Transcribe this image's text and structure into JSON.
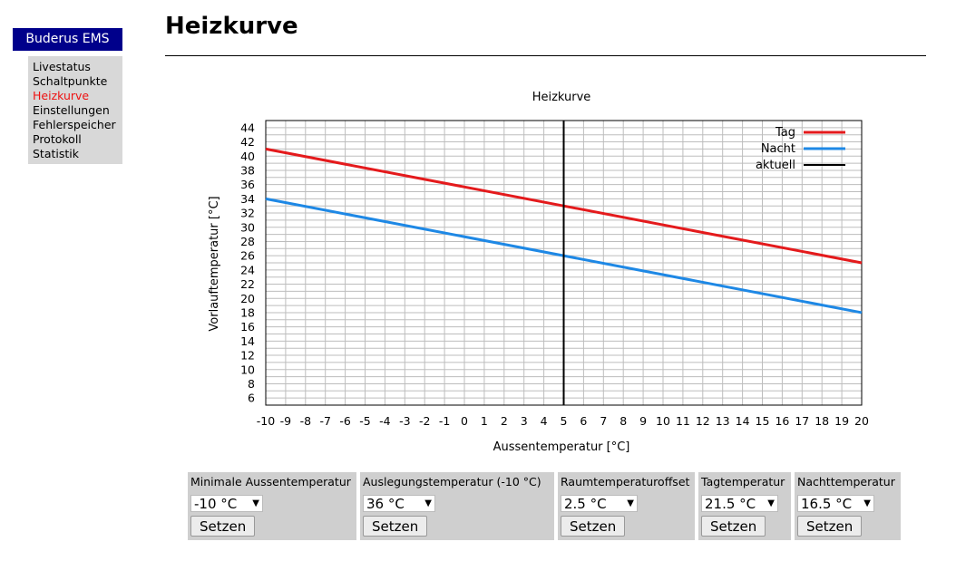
{
  "sidebar": {
    "brand": "Buderus EMS",
    "items": [
      {
        "label": "Livestatus",
        "active": false
      },
      {
        "label": "Schaltpunkte",
        "active": false
      },
      {
        "label": "Heizkurve",
        "active": true
      },
      {
        "label": "Einstellungen",
        "active": false
      },
      {
        "label": "Fehlerspeicher",
        "active": false
      },
      {
        "label": "Protokoll",
        "active": false
      },
      {
        "label": "Statistik",
        "active": false
      }
    ]
  },
  "header": {
    "title": "Heizkurve"
  },
  "colors": {
    "tag": "#e41a1c",
    "nacht": "#1e88e5",
    "aktuell": "#000000",
    "brand": "#00008b",
    "active_nav": "#ee1111"
  },
  "chart_data": {
    "type": "line",
    "title": "Heizkurve",
    "xlabel": "Aussentemperatur [°C]",
    "ylabel": "Vorlauftemperatur [°C]",
    "xlim": [
      -10,
      20
    ],
    "ylim": [
      5,
      45
    ],
    "xticks": [
      -10,
      -9,
      -8,
      -7,
      -6,
      -5,
      -4,
      -3,
      -2,
      -1,
      0,
      1,
      2,
      3,
      4,
      5,
      6,
      7,
      8,
      9,
      10,
      11,
      12,
      13,
      14,
      15,
      16,
      17,
      18,
      19,
      20
    ],
    "yticks": [
      6,
      8,
      10,
      12,
      14,
      16,
      18,
      20,
      22,
      24,
      26,
      28,
      30,
      32,
      34,
      36,
      38,
      40,
      42,
      44
    ],
    "grid": true,
    "legend_position": "top-right",
    "series": [
      {
        "name": "Tag",
        "x": [
          -10,
          20
        ],
        "y": [
          41,
          25
        ],
        "color": "#e41a1c"
      },
      {
        "name": "Nacht",
        "x": [
          -10,
          20
        ],
        "y": [
          34,
          18
        ],
        "color": "#1e88e5"
      }
    ],
    "vline": {
      "name": "aktuell",
      "x": 5,
      "color": "#000000"
    }
  },
  "controls": [
    {
      "label": "Minimale Aussentemperatur",
      "value": "-10 °C",
      "button": "Setzen"
    },
    {
      "label": "Auslegungstemperatur (-10 °C)",
      "value": "36 °C",
      "button": "Setzen"
    },
    {
      "label": "Raumtemperaturoffset",
      "value": "2.5 °C",
      "button": "Setzen"
    },
    {
      "label": "Tagtemperatur",
      "value": "21.5 °C",
      "button": "Setzen"
    },
    {
      "label": "Nachttemperatur",
      "value": "16.5 °C",
      "button": "Setzen"
    }
  ]
}
